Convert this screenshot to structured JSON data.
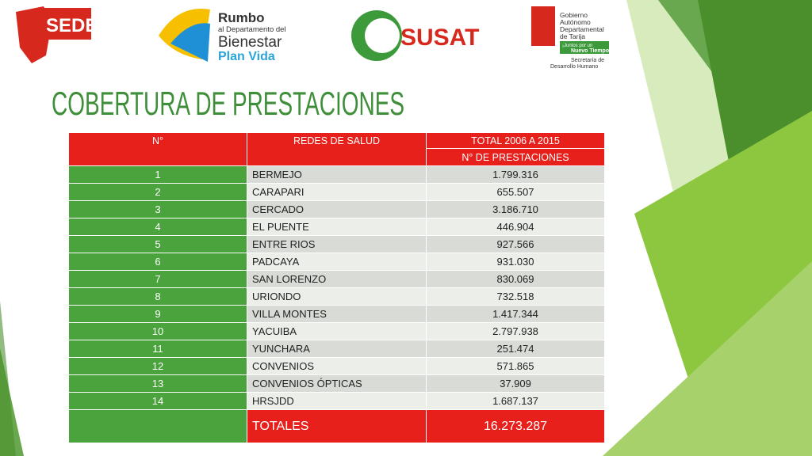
{
  "logos": {
    "sedes": "SEDES",
    "rumbo": {
      "line1": "Rumbo",
      "line2": "al Departamento del",
      "line3": "Bienestar",
      "line4": "Plan Vida"
    },
    "susat": "SUSAT",
    "gobierno": {
      "line1": "Gobierno",
      "line2": "Autónomo",
      "line3": "Departamental",
      "line4": "de Tarija",
      "slogan1": "¡Juntos por un",
      "slogan2": "Nuevo Tiempo!",
      "secretaria1": "Secretaría de",
      "secretaria2": "Desarrollo Humano"
    }
  },
  "title": "COBERTURA DE PRESTACIONES",
  "table": {
    "header": [
      "N°",
      "REDES DE SALUD",
      "TOTAL 2006 A 2015"
    ],
    "subheader": "N° DE PRESTACIONES",
    "rows": [
      [
        "1",
        "BERMEJO",
        "1.799.316"
      ],
      [
        "2",
        "CARAPARI",
        "655.507"
      ],
      [
        "3",
        "CERCADO",
        "3.186.710"
      ],
      [
        "4",
        "EL PUENTE",
        "446.904"
      ],
      [
        "5",
        "ENTRE RIOS",
        "927.566"
      ],
      [
        "6",
        "PADCAYA",
        "931.030"
      ],
      [
        "7",
        "SAN LORENZO",
        "830.069"
      ],
      [
        "8",
        "URIONDO",
        "732.518"
      ],
      [
        "9",
        "VILLA MONTES",
        "1.417.344"
      ],
      [
        "10",
        "YACUIBA",
        "2.797.938"
      ],
      [
        "11",
        "YUNCHARA",
        "251.474"
      ],
      [
        "12",
        "CONVENIOS",
        "571.865"
      ],
      [
        "13",
        "CONVENIOS ÓPTICAS",
        "37.909"
      ],
      [
        "14",
        "HRSJDD",
        "1.687.137"
      ]
    ],
    "totals": {
      "label": "TOTALES",
      "value": "16.273.287"
    }
  }
}
